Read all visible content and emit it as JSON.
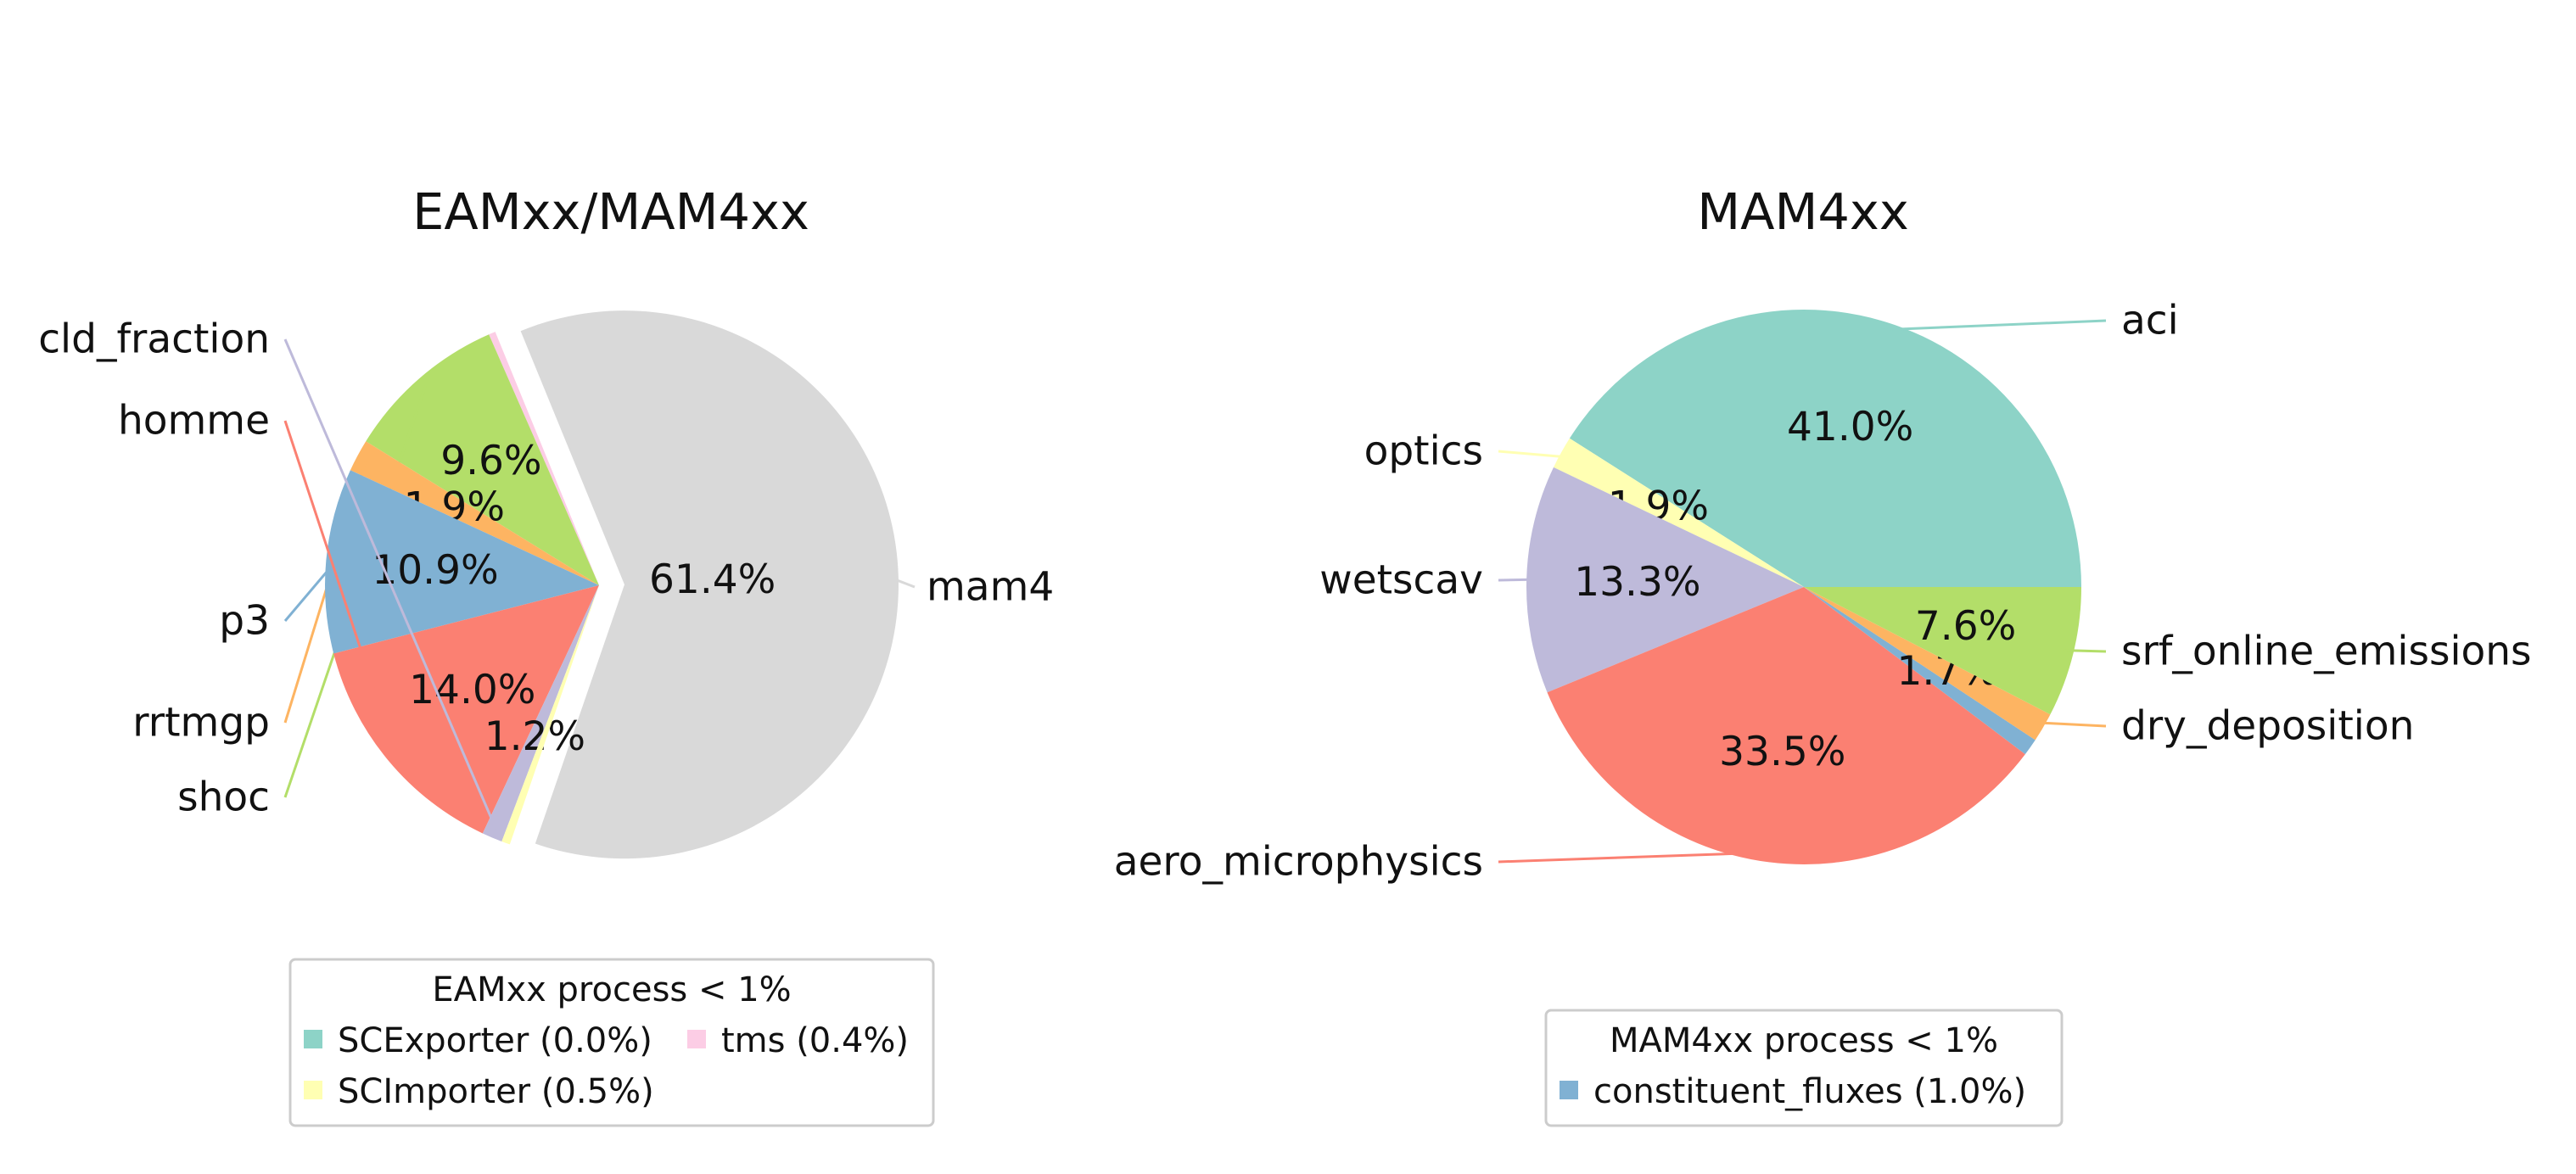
{
  "chart_data": [
    {
      "type": "pie",
      "title": "EAMxx/MAM4xx",
      "slices": [
        {
          "label": "mam4",
          "value": 61.4,
          "pct_label": "61.4%",
          "color": "#d9d9d9"
        },
        {
          "label": "tms",
          "value": 0.4,
          "pct_label": "",
          "color": "#fccde5"
        },
        {
          "label": "shoc",
          "value": 9.6,
          "pct_label": "9.6%",
          "color": "#b3de69"
        },
        {
          "label": "rrtmgp",
          "value": 1.9,
          "pct_label": "1.9%",
          "color": "#fdb462"
        },
        {
          "label": "p3",
          "value": 10.9,
          "pct_label": "10.9%",
          "color": "#80b1d3"
        },
        {
          "label": "homme",
          "value": 14.0,
          "pct_label": "14.0%",
          "color": "#fb8072"
        },
        {
          "label": "cld_fraction",
          "value": 1.2,
          "pct_label": "1.2%",
          "color": "#bebada"
        },
        {
          "label": "SCImporter",
          "value": 0.5,
          "pct_label": "",
          "color": "#ffffb3"
        },
        {
          "label": "SCExporter",
          "value": 0.0,
          "pct_label": "",
          "color": "#8dd3c7"
        }
      ],
      "legend": {
        "title": "EAMxx process < 1%",
        "entries": [
          {
            "label": "SCExporter (0.0%)",
            "color": "#8dd3c7"
          },
          {
            "label": "tms (0.4%)",
            "color": "#fccde5"
          },
          {
            "label": "SCImporter (0.5%)",
            "color": "#ffffb3"
          }
        ]
      }
    },
    {
      "type": "pie",
      "title": "MAM4xx",
      "slices": [
        {
          "label": "aci",
          "value": 41.0,
          "pct_label": "41.0%",
          "color": "#8dd3c7"
        },
        {
          "label": "optics",
          "value": 1.9,
          "pct_label": "1.9%",
          "color": "#ffffb3"
        },
        {
          "label": "wetscav",
          "value": 13.3,
          "pct_label": "13.3%",
          "color": "#bebada"
        },
        {
          "label": "aero_microphysics",
          "value": 33.5,
          "pct_label": "33.5%",
          "color": "#fb8072"
        },
        {
          "label": "constituent_fluxes",
          "value": 1.0,
          "pct_label": "",
          "color": "#80b1d3"
        },
        {
          "label": "dry_deposition",
          "value": 1.7,
          "pct_label": "1.7%",
          "color": "#fdb462"
        },
        {
          "label": "srf_online_emissions",
          "value": 7.6,
          "pct_label": "7.6%",
          "color": "#b3de69"
        }
      ],
      "legend": {
        "title": "MAM4xx process < 1%",
        "entries": [
          {
            "label": "constituent_fluxes (1.0%)",
            "color": "#80b1d3"
          }
        ]
      }
    }
  ]
}
